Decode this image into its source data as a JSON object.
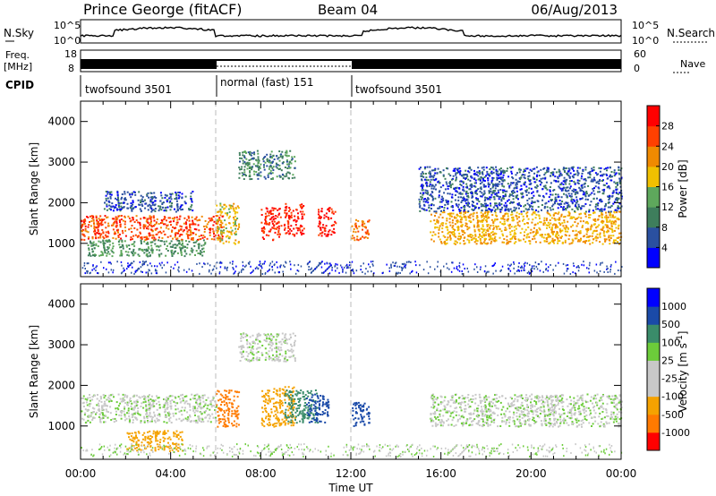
{
  "header": {
    "station": "Prince George (fitACF)",
    "beam": "Beam 04",
    "date": "06/Aug/2013"
  },
  "left_labels": {
    "nsky": "N.Sky",
    "freq_line1": "Freq.",
    "freq_line2": "[MHz]",
    "cpid": "CPID"
  },
  "right_labels": {
    "nsearch": "N.Search",
    "nave": "Nave"
  },
  "noise_axis": {
    "left_top": "10^5",
    "left_bottom": "10^0",
    "right_top": "10^5",
    "right_bottom": "10^0"
  },
  "freq_axis": {
    "left_ticks": [
      "18",
      "8"
    ],
    "right_ticks": [
      "60",
      "0"
    ]
  },
  "cpid_segments": [
    {
      "label": "twofsound 3501",
      "start": "00:00",
      "end": "06:00"
    },
    {
      "label": "normal (fast) 151",
      "start": "06:00",
      "end": "12:00"
    },
    {
      "label": "twofsound 3501",
      "start": "12:00",
      "end": "24:00"
    }
  ],
  "colors": {
    "power": [
      "#0000ff",
      "#2a50a0",
      "#3e7e5c",
      "#5ea85c",
      "#f0c000",
      "#f08a00",
      "#ff4000",
      "#ff0000"
    ],
    "velocity": [
      "#ff0000",
      "#ff7a00",
      "#f5a200",
      "#c8c8c8",
      "#c8c8c8",
      "#6ccc3a",
      "#3a8c6a",
      "#1a4aa8",
      "#0000ff"
    ]
  },
  "chart_data": [
    {
      "type": "heatmap",
      "ylabel": "Slant Range [km]",
      "xlabel": "Time UT",
      "x_ticks": [
        "00:00",
        "04:00",
        "08:00",
        "12:00",
        "16:00",
        "20:00",
        "00:00"
      ],
      "y_ticks": [
        "1000",
        "2000",
        "3000",
        "4000"
      ],
      "xlim_hours": [
        0,
        24
      ],
      "ylim": [
        180,
        4500
      ],
      "colorbar": {
        "label": "Power [dB]",
        "ticks": [
          "4",
          "8",
          "12",
          "16",
          "20",
          "24",
          "28"
        ],
        "range": [
          0,
          32
        ]
      },
      "dashed_lines_hours": [
        6,
        12
      ],
      "blobs": [
        {
          "t0": 0.0,
          "t1": 6.3,
          "r0": 1100,
          "r1": 1700,
          "value": 26
        },
        {
          "t0": 0.3,
          "t1": 5.5,
          "r0": 700,
          "r1": 1100,
          "value": 12
        },
        {
          "t0": 1.0,
          "t1": 5.0,
          "r0": 1800,
          "r1": 2300,
          "value": 6
        },
        {
          "t0": 6.0,
          "t1": 7.0,
          "r0": 1000,
          "r1": 2000,
          "value": 18
        },
        {
          "t0": 7.0,
          "t1": 9.5,
          "r0": 2600,
          "r1": 3300,
          "value": 10
        },
        {
          "t0": 8.0,
          "t1": 8.9,
          "r0": 1100,
          "r1": 1900,
          "value": 28
        },
        {
          "t0": 9.0,
          "t1": 9.9,
          "r0": 1200,
          "r1": 2000,
          "value": 29
        },
        {
          "t0": 10.5,
          "t1": 11.3,
          "r0": 1200,
          "r1": 1900,
          "value": 30
        },
        {
          "t0": 12.0,
          "t1": 12.8,
          "r0": 1100,
          "r1": 1600,
          "value": 24
        },
        {
          "t0": 15.5,
          "t1": 24.0,
          "r0": 1000,
          "r1": 1800,
          "value": 20
        },
        {
          "t0": 15.0,
          "t1": 24.0,
          "r0": 1800,
          "r1": 2900,
          "value": 6
        }
      ]
    },
    {
      "type": "heatmap",
      "ylabel": "Slant Range [km]",
      "xlabel": "Time UT",
      "x_ticks": [
        "00:00",
        "04:00",
        "08:00",
        "12:00",
        "16:00",
        "20:00",
        "00:00"
      ],
      "y_ticks": [
        "1000",
        "2000",
        "3000",
        "4000"
      ],
      "xlim_hours": [
        0,
        24
      ],
      "ylim": [
        180,
        4500
      ],
      "colorbar": {
        "label": "Velocity [m s^-1]",
        "ticks": [
          "1000",
          "500",
          "100",
          "25",
          "-25",
          "-100",
          "-500",
          "-1000"
        ]
      },
      "dashed_lines_hours": [
        6,
        12
      ],
      "blobs": [
        {
          "t0": 0.0,
          "t1": 6.0,
          "r0": 1100,
          "r1": 1800,
          "value": 0
        },
        {
          "t0": 2.0,
          "t1": 4.5,
          "r0": 400,
          "r1": 900,
          "value": -300
        },
        {
          "t0": 6.0,
          "t1": 7.0,
          "r0": 1000,
          "r1": 1900,
          "value": -800
        },
        {
          "t0": 8.0,
          "t1": 9.5,
          "r0": 1000,
          "r1": 2000,
          "value": -400
        },
        {
          "t0": 9.0,
          "t1": 10.5,
          "r0": 1100,
          "r1": 1900,
          "value": 200
        },
        {
          "t0": 10.0,
          "t1": 11.0,
          "r0": 1100,
          "r1": 1800,
          "value": 900
        },
        {
          "t0": 12.0,
          "t1": 12.8,
          "r0": 1000,
          "r1": 1600,
          "value": 900
        },
        {
          "t0": 15.5,
          "t1": 24.0,
          "r0": 1000,
          "r1": 1800,
          "value": 0
        },
        {
          "t0": 7.0,
          "t1": 9.5,
          "r0": 2600,
          "r1": 3300,
          "value": 0
        }
      ]
    }
  ]
}
